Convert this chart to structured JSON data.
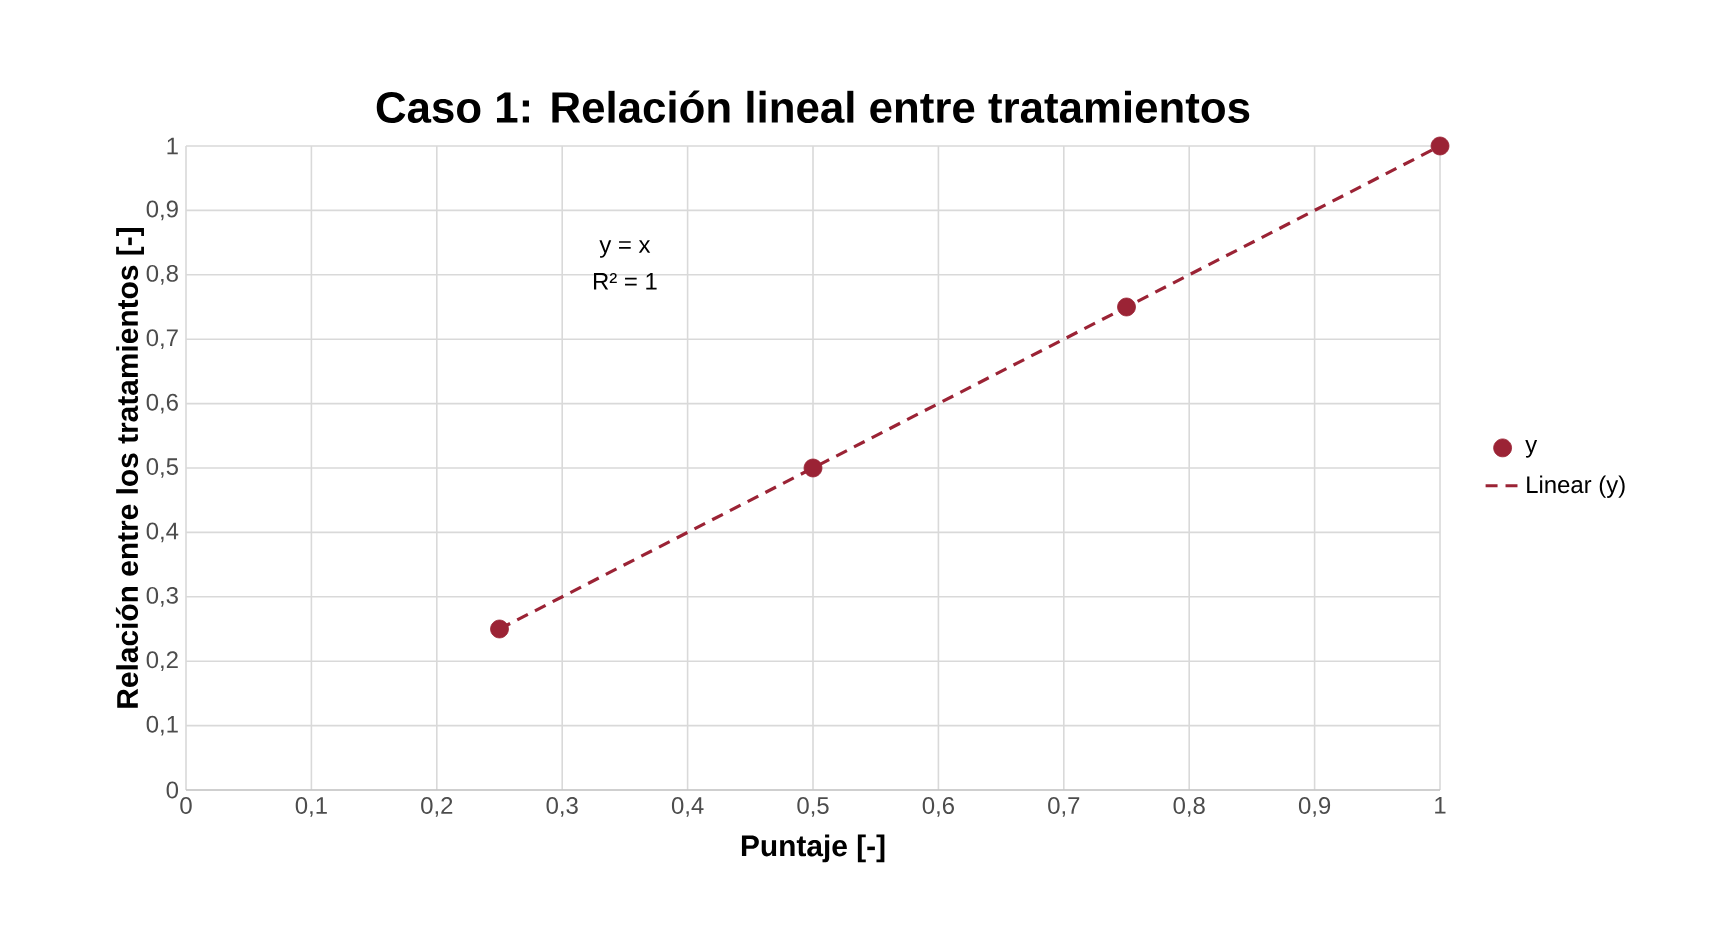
{
  "chart_data": {
    "type": "scatter",
    "title": "Caso 1: Relación lineal entre tratamientos",
    "xlabel": "Puntaje  [-]",
    "ylabel": "Relación entre los tratamientos  [-]",
    "series": [
      {
        "name": "y",
        "color": "#9b2335",
        "x": [
          0.25,
          0.5,
          0.75,
          1
        ],
        "values": [
          0.25,
          0.5,
          0.75,
          1
        ]
      },
      {
        "name": "Linear (y)",
        "type": "line",
        "color": "#9b2335",
        "line_style": "dashed",
        "marker": "none",
        "x": [
          0.25,
          1
        ],
        "values": [
          0.25,
          1
        ]
      }
    ],
    "annotations": [
      "y = x",
      "R² = 1"
    ],
    "xlim": [
      0,
      1
    ],
    "ylim": [
      0,
      1
    ],
    "xticks": [
      0,
      {
        "value": 0.1,
        "label": "0,1"
      },
      {
        "value": 0.2,
        "label": "0,2"
      },
      {
        "value": 0.3,
        "label": "0,3"
      },
      {
        "value": 0.4,
        "label": "0,4"
      },
      {
        "value": 0.5,
        "label": "0,5"
      },
      {
        "value": 0.6,
        "label": "0,6"
      },
      {
        "value": 0.7,
        "label": "0,7"
      },
      {
        "value": 0.8,
        "label": "0,8"
      },
      {
        "value": 0.9,
        "label": "0,9"
      },
      1
    ],
    "yticks": [
      0,
      {
        "value": 0.1,
        "label": "0,1"
      },
      {
        "value": 0.2,
        "label": "0,2"
      },
      {
        "value": 0.3,
        "label": "0,3"
      },
      {
        "value": 0.4,
        "label": "0,4"
      },
      {
        "value": 0.5,
        "label": "0,5"
      },
      {
        "value": 0.6,
        "label": "0,6"
      },
      {
        "value": 0.7,
        "label": "0,7"
      },
      {
        "value": 0.8,
        "label": "0,8"
      },
      {
        "value": 0.9,
        "label": "0,9"
      },
      1
    ],
    "grid": true,
    "legend": "right"
  }
}
